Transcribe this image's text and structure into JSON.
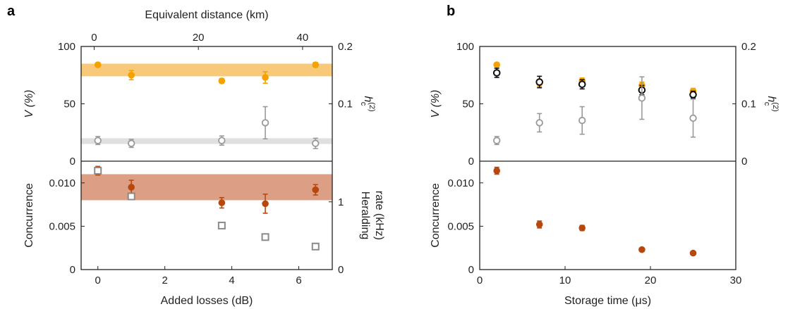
{
  "colors": {
    "visibility": "#f5a100",
    "visibility_band": "#f9c97a",
    "g2": "#9a9a9a",
    "g2_band": "#e0e0e0",
    "concurrence": "#b8470e",
    "concurrence_band": "#dc9f86",
    "heralding": "#8a8a8a",
    "black_series": "#111111"
  },
  "chart_data": [
    {
      "id": "a-top",
      "panel": "a",
      "type": "scatter",
      "xlim": [
        -0.5,
        7
      ],
      "x2lim": [
        -2.5,
        45.7
      ],
      "x2label": "Equivalent distance (km)",
      "x2ticks": [
        0,
        20,
        40
      ],
      "ylabel": "V (%)",
      "ylim": [
        0,
        100
      ],
      "yticks": [
        0,
        50,
        100
      ],
      "y2label": "h(2)c",
      "y2label_main": "h",
      "y2label_sup": "(2)",
      "y2label_sub": "c",
      "y2lim": [
        0,
        0.2
      ],
      "y2ticks": [
        "0.1",
        "0.2"
      ],
      "y2tick_values": [
        0.1,
        0.2
      ],
      "bands": [
        {
          "series": "V",
          "axis": "y",
          "from": 74,
          "to": 85
        },
        {
          "series": "g2",
          "axis": "y2",
          "from": 0.03,
          "to": 0.04
        }
      ],
      "series": [
        {
          "key": "V",
          "axis": "y",
          "marker": "filled-circle",
          "x": [
            0,
            1,
            3.7,
            5,
            6.5
          ],
          "y": [
            84,
            75,
            70,
            73,
            84
          ],
          "err": [
            1.5,
            4,
            2,
            5,
            2
          ]
        },
        {
          "key": "g2",
          "axis": "y2",
          "marker": "open-circle",
          "x": [
            0,
            1,
            3.7,
            5,
            6.5
          ],
          "y": [
            0.036,
            0.031,
            0.036,
            0.067,
            0.031
          ],
          "err": [
            0.007,
            0.007,
            0.008,
            0.028,
            0.009
          ]
        }
      ]
    },
    {
      "id": "a-bottom",
      "panel": "a",
      "type": "scatter",
      "xlim": [
        -0.5,
        7
      ],
      "xlabel": "Added losses (dB)",
      "xticks": [
        0,
        2,
        4,
        6
      ],
      "ylabel": "Concurrence",
      "ylim": [
        0,
        0.0125
      ],
      "yticks": [
        "0",
        "0.005",
        "0.010"
      ],
      "ytick_values": [
        0,
        0.005,
        0.01
      ],
      "y2label": "Heralding rate (kHz)",
      "y2label_line1": "Heralding",
      "y2label_line2": "rate (kHz)",
      "y2lim": [
        0,
        1.6
      ],
      "y2ticks": [
        "0",
        "1"
      ],
      "y2tick_values": [
        0,
        1
      ],
      "bands": [
        {
          "series": "concurrence",
          "axis": "y",
          "from": 0.008,
          "to": 0.011
        }
      ],
      "series": [
        {
          "key": "concurrence",
          "axis": "y",
          "marker": "filled-circle",
          "x": [
            0,
            1,
            3.7,
            5,
            6.5
          ],
          "y": [
            0.0114,
            0.0095,
            0.0077,
            0.0076,
            0.0092
          ],
          "err": [
            0.0005,
            0.0008,
            0.0006,
            0.0011,
            0.0006
          ]
        },
        {
          "key": "heralding",
          "axis": "y2",
          "marker": "open-square",
          "x": [
            0,
            1,
            3.7,
            5,
            6.5
          ],
          "y": [
            1.46,
            1.08,
            0.65,
            0.48,
            0.34
          ],
          "err": []
        }
      ]
    },
    {
      "id": "b-top",
      "panel": "b",
      "type": "scatter",
      "xlim": [
        0,
        30
      ],
      "ylabel": "V (%)",
      "ylim": [
        0,
        100
      ],
      "yticks": [
        0,
        50,
        100
      ],
      "y2label": "h(2)c",
      "y2label_main": "h",
      "y2label_sup": "(2)",
      "y2label_sub": "c",
      "y2lim": [
        0,
        0.2
      ],
      "y2ticks": [
        "0",
        "0.1",
        "0.2"
      ],
      "y2tick_values": [
        0,
        0.1,
        0.2
      ],
      "bands": [],
      "series": [
        {
          "key": "V",
          "axis": "y",
          "marker": "filled-circle",
          "x": [
            2,
            7,
            12,
            19,
            25
          ],
          "y": [
            84,
            68,
            70,
            66,
            61
          ],
          "err": [
            1.5,
            3,
            2.5,
            3,
            2.5
          ]
        },
        {
          "key": "black",
          "axis": "y",
          "marker": "open-circle-black",
          "x": [
            2,
            7,
            12,
            19,
            25
          ],
          "y": [
            77,
            69,
            67,
            62,
            58
          ],
          "err": [
            4,
            5,
            4,
            4,
            3
          ]
        },
        {
          "key": "g2",
          "axis": "y2",
          "marker": "open-circle",
          "x": [
            2,
            7,
            12,
            19,
            25
          ],
          "y": [
            0.036,
            0.067,
            0.071,
            0.11,
            0.075
          ],
          "err": [
            0.007,
            0.016,
            0.024,
            0.037,
            0.033
          ]
        }
      ]
    },
    {
      "id": "b-bottom",
      "panel": "b",
      "type": "scatter",
      "xlim": [
        0,
        30
      ],
      "xlabel": "Storage time (μs)",
      "xticks": [
        0,
        10,
        20,
        30
      ],
      "ylabel": "Concurrence",
      "ylim": [
        0,
        0.0125
      ],
      "yticks": [
        "0",
        "0.005",
        "0.010"
      ],
      "ytick_values": [
        0,
        0.005,
        0.01
      ],
      "bands": [],
      "series": [
        {
          "key": "concurrence",
          "axis": "y",
          "marker": "filled-circle",
          "x": [
            2,
            7,
            12,
            19,
            25
          ],
          "y": [
            0.0114,
            0.0052,
            0.0048,
            0.0023,
            0.0019
          ],
          "err": [
            0.0004,
            0.0004,
            0.0003,
            0.0002,
            0.0002
          ]
        }
      ]
    }
  ],
  "panels": {
    "a": {
      "letter": "a"
    },
    "b": {
      "letter": "b"
    }
  }
}
